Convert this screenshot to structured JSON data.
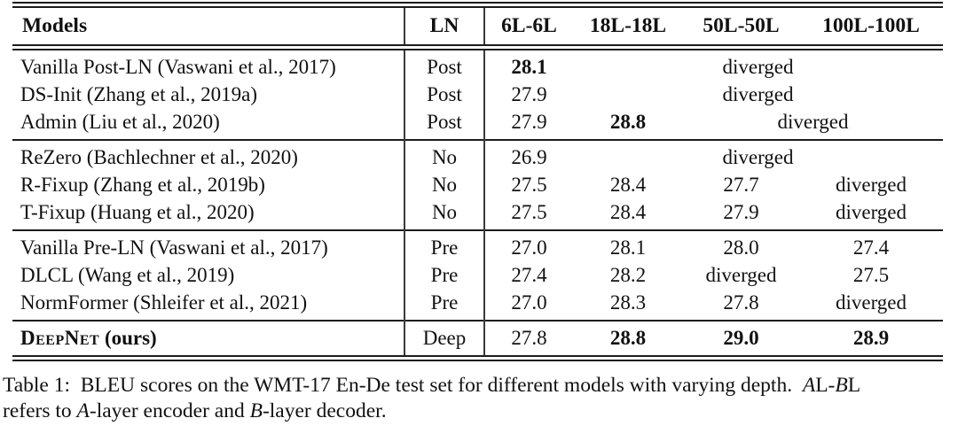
{
  "header": {
    "models": "Models",
    "ln": "LN",
    "col1": "6L-6L",
    "col2": "18L-18L",
    "col3": "50L-50L",
    "col4": "100L-100L"
  },
  "rows": [
    {
      "model": "Vanilla Post-LN (Vaswani et al., 2017)",
      "ln": "Post",
      "v1": "28.1",
      "span": "diverged"
    },
    {
      "model": "DS-Init (Zhang et al., 2019a)",
      "ln": "Post",
      "v1": "27.9",
      "span": "diverged"
    },
    {
      "model": "Admin (Liu et al., 2020)",
      "ln": "Post",
      "v1": "27.9",
      "v2": "28.8",
      "span": "diverged"
    },
    {
      "model": "ReZero (Bachlechner et al., 2020)",
      "ln": "No",
      "v1": "26.9",
      "span": "diverged"
    },
    {
      "model": "R-Fixup (Zhang et al., 2019b)",
      "ln": "No",
      "v1": "27.5",
      "v2": "28.4",
      "v3": "27.7",
      "v4": "diverged"
    },
    {
      "model": "T-Fixup (Huang et al., 2020)",
      "ln": "No",
      "v1": "27.5",
      "v2": "28.4",
      "v3": "27.9",
      "v4": "diverged"
    },
    {
      "model": "Vanilla Pre-LN (Vaswani et al., 2017)",
      "ln": "Pre",
      "v1": "27.0",
      "v2": "28.1",
      "v3": "28.0",
      "v4": "27.4"
    },
    {
      "model": "DLCL (Wang et al., 2019)",
      "ln": "Pre",
      "v1": "27.4",
      "v2": "28.2",
      "v3": "diverged",
      "v4": "27.5"
    },
    {
      "model": "NormFormer (Shleifer et al., 2021)",
      "ln": "Pre",
      "v1": "27.0",
      "v2": "28.3",
      "v3": "27.8",
      "v4": "diverged"
    },
    {
      "model": "DeepNet",
      "model_suffix": " (ours)",
      "ln": "Deep",
      "v1": "27.8",
      "v2": "28.8",
      "v3": "29.0",
      "v4": "28.9"
    }
  ],
  "caption": {
    "lines": [
      [
        {
          "t": "Table 1: BLEU scores on the WMT-17 En-De test set for different models with varying depth. ",
          "i": false
        },
        {
          "t": "A",
          "i": true
        },
        {
          "t": "L-",
          "i": false
        },
        {
          "t": "B",
          "i": true
        },
        {
          "t": "L",
          "i": false
        }
      ],
      [
        {
          "t": "refers to ",
          "i": false
        },
        {
          "t": "A",
          "i": true
        },
        {
          "t": "-layer encoder and ",
          "i": false
        },
        {
          "t": "B",
          "i": true
        },
        {
          "t": "-layer decoder.",
          "i": false
        }
      ]
    ]
  }
}
